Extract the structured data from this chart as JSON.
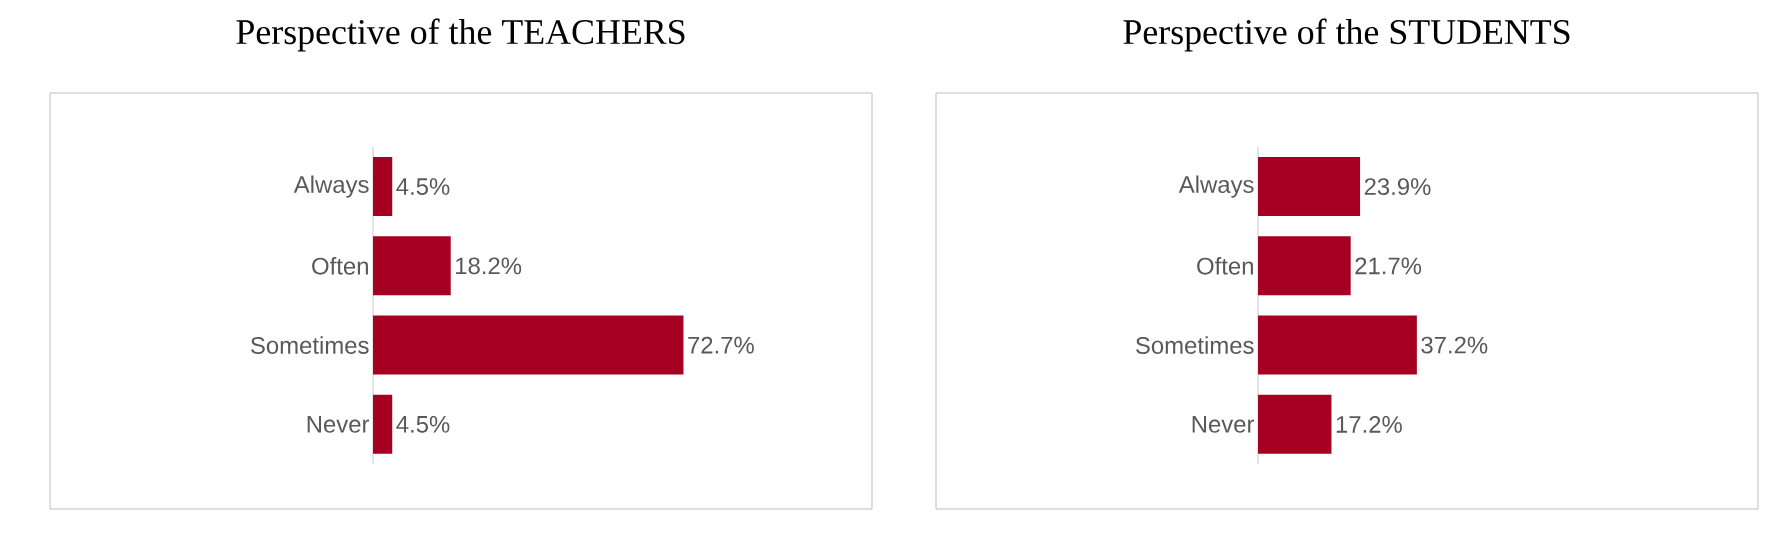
{
  "chart_data": [
    {
      "type": "bar",
      "title": "Perspective of the TEACHERS",
      "orientation": "horizontal",
      "categories": [
        "Always",
        "Often",
        "Sometimes",
        "Never"
      ],
      "values": [
        4.5,
        18.2,
        72.7,
        4.5
      ],
      "value_labels": [
        "4.5%",
        "18.2%",
        "72.7%",
        "4.5%"
      ],
      "color": "#a50021",
      "tick_labels": "y"
    },
    {
      "type": "bar",
      "title": "Perspective of the STUDENTS",
      "orientation": "horizontal",
      "categories": [
        "Always",
        "Often",
        "Sometimes",
        "Never"
      ],
      "values": [
        23.9,
        21.7,
        37.2,
        17.2
      ],
      "value_labels": [
        "23.9%",
        "21.7%",
        "37.2%",
        "17.2%"
      ],
      "color": "#a50021",
      "tick_labels": "y"
    }
  ]
}
